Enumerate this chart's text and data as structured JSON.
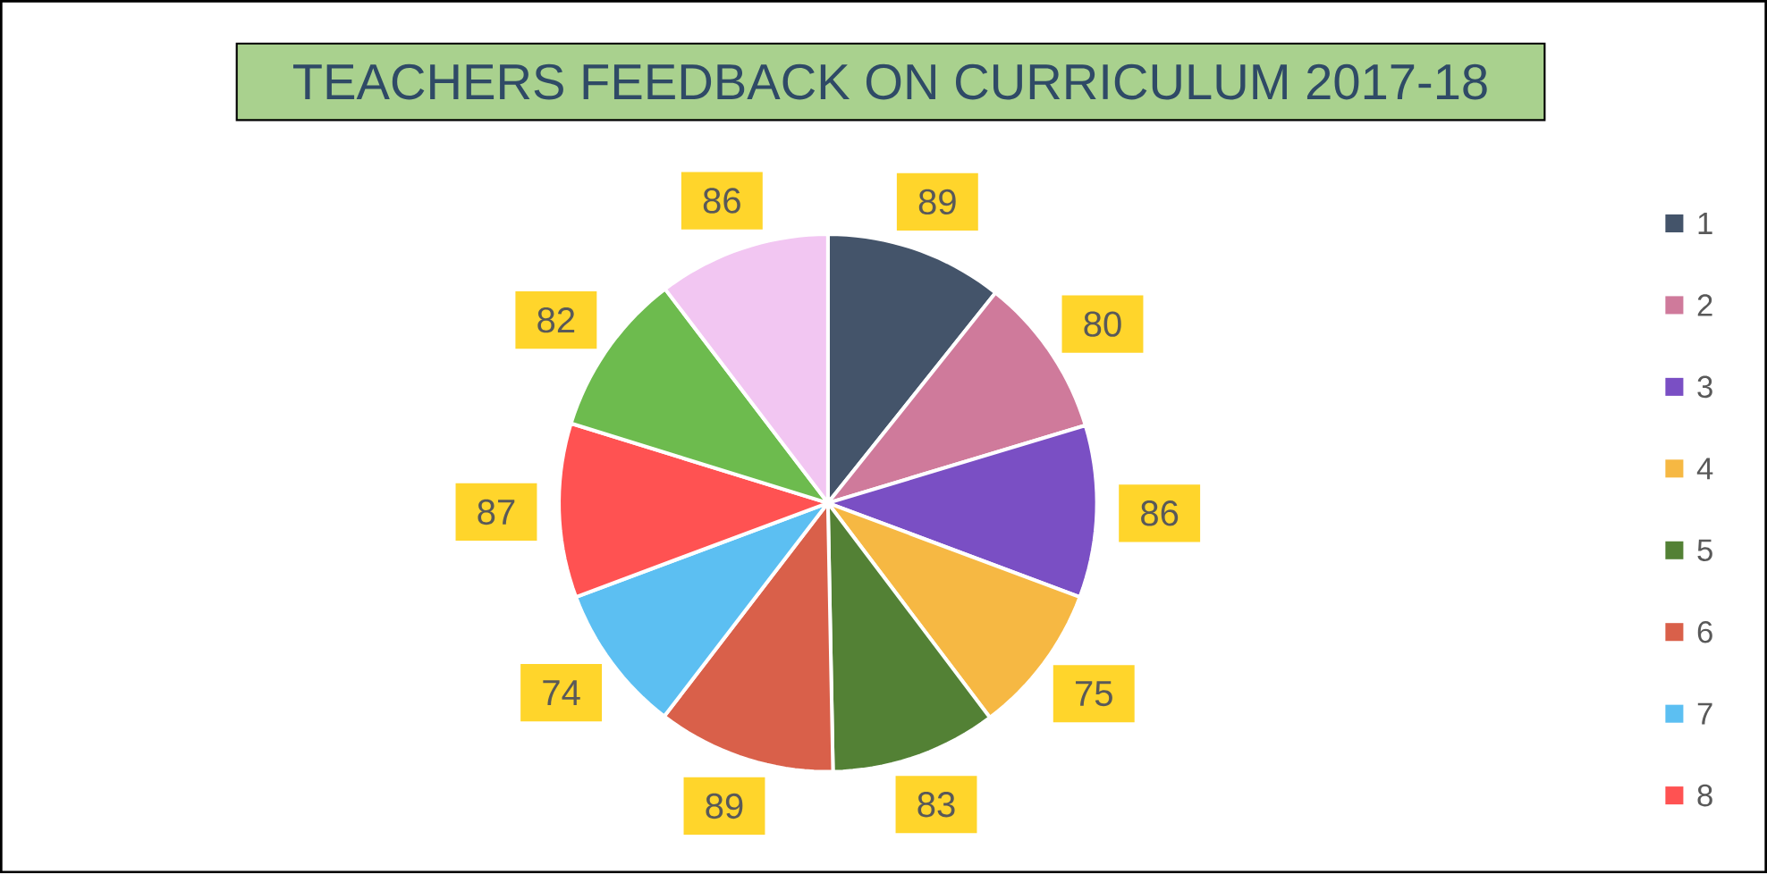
{
  "chart_data": {
    "type": "pie",
    "title": "TEACHERS FEEDBACK ON CURRICULUM 2017-18",
    "categories": [
      "1",
      "2",
      "3",
      "4",
      "5",
      "6",
      "7",
      "8",
      null,
      null
    ],
    "values": [
      89,
      80,
      86,
      75,
      83,
      89,
      74,
      87,
      82,
      86
    ],
    "colors": [
      "#44546a",
      "#cf7a9b",
      "#7a4fc4",
      "#f6b843",
      "#538135",
      "#d9604a",
      "#5cbff2",
      "#ff5252",
      "#6dbb4e",
      "#f2c6f2"
    ],
    "data_labels": true,
    "legend": "right"
  }
}
